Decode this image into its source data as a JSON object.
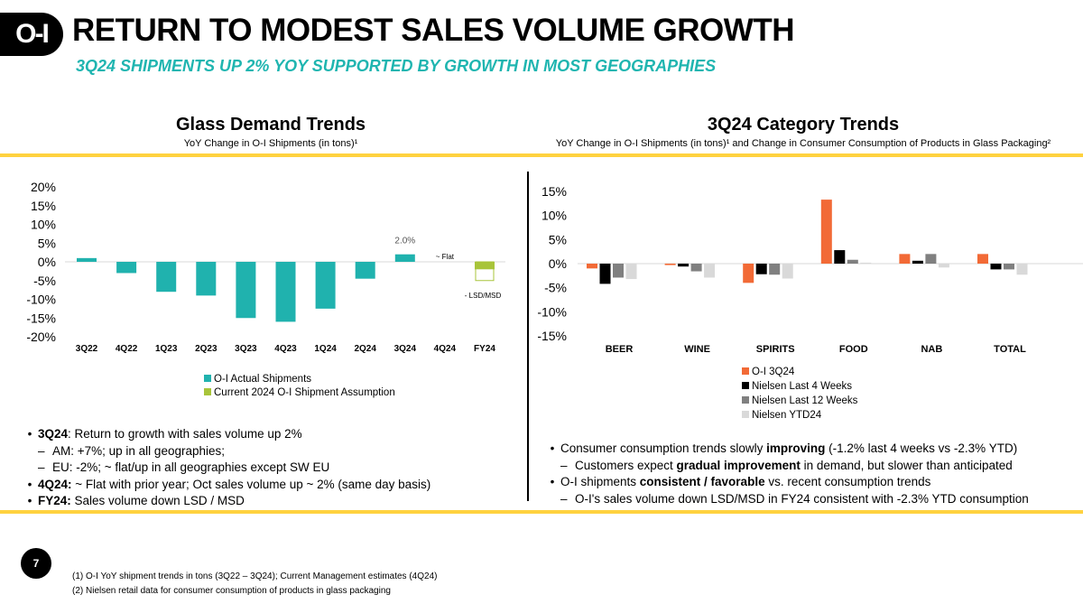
{
  "header": {
    "logo_text": "O-I",
    "title": "RETURN TO MODEST SALES VOLUME GROWTH",
    "subtitle": "3Q24 SHIPMENTS UP 2% YOY SUPPORTED BY GROWTH IN MOST GEOGRAPHIES"
  },
  "colors": {
    "teal": "#20b2ae",
    "lime": "#a8c43a",
    "orange": "#f26a36",
    "black": "#000000",
    "gray": "#808080",
    "lightgray": "#d9d9d9",
    "yellow_rule": "#ffd23f",
    "subtitle": "#1fb5b0"
  },
  "chart_data": [
    {
      "type": "bar",
      "title": "Glass Demand Trends",
      "subtitle": "YoY Change in O-I Shipments (in tons)¹",
      "categories": [
        "3Q22",
        "4Q22",
        "1Q23",
        "2Q23",
        "3Q23",
        "4Q23",
        "1Q24",
        "2Q24",
        "3Q24",
        "4Q24",
        "FY24"
      ],
      "yticks": [
        "20%",
        "15%",
        "10%",
        "5%",
        "0%",
        "-5%",
        "-10%",
        "-15%",
        "-20%"
      ],
      "ylim": [
        -20,
        20
      ],
      "grid": false,
      "series": [
        {
          "name": "O-I Actual Shipments",
          "values": [
            1,
            -3,
            -8,
            -9,
            -15,
            -16,
            -12.5,
            -4.5,
            2.0,
            null,
            null
          ]
        },
        {
          "name": "Current 2024 O-I Shipment Assumption",
          "values": [
            null,
            null,
            null,
            null,
            null,
            null,
            null,
            null,
            null,
            0,
            -2
          ],
          "range_low": -5
        }
      ],
      "annotations": {
        "3Q24": "2.0%",
        "4Q24": "~ Flat",
        "FY24": "- LSD/MSD"
      },
      "legend": "bottom"
    },
    {
      "type": "bar",
      "title": "3Q24 Category Trends",
      "subtitle": "YoY Change in O-I Shipments (in tons)¹ and Change in Consumer Consumption of Products in Glass Packaging²",
      "categories": [
        "BEER",
        "WINE",
        "SPIRITS",
        "FOOD",
        "NAB",
        "TOTAL"
      ],
      "yticks": [
        "15%",
        "10%",
        "5%",
        "0%",
        "-5%",
        "-10%",
        "-15%"
      ],
      "ylim": [
        -15,
        15
      ],
      "grid": false,
      "series": [
        {
          "name": "O-I 3Q24",
          "values": [
            -1.0,
            -0.3,
            -4.0,
            13.3,
            2.0,
            2.0
          ]
        },
        {
          "name": "Nielsen Last 4 Weeks",
          "values": [
            -4.2,
            -0.6,
            -2.2,
            2.8,
            0.6,
            -1.2
          ]
        },
        {
          "name": "Nielsen Last 12 Weeks",
          "values": [
            -2.9,
            -1.6,
            -2.3,
            0.8,
            2.0,
            -1.2
          ]
        },
        {
          "name": "Nielsen YTD24",
          "values": [
            -3.2,
            -2.9,
            -3.1,
            0.2,
            -0.8,
            -2.3
          ]
        }
      ],
      "legend": "bottom"
    }
  ],
  "left_bullets": [
    {
      "level": 1,
      "bold": "3Q24",
      "text": ":  Return to growth with sales volume up 2%"
    },
    {
      "level": 2,
      "bold": "",
      "text": "AM: +7%;  up in all geographies;"
    },
    {
      "level": 2,
      "bold": "",
      "text": "EU: -2%;  ~ flat/up in all geographies except SW EU"
    },
    {
      "level": 1,
      "bold": "4Q24:",
      "text": "  ~ Flat with prior year;  Oct sales volume up ~ 2% (same day basis)"
    },
    {
      "level": 1,
      "bold": "FY24:",
      "text": "  Sales volume down LSD / MSD"
    }
  ],
  "right_bullets": [
    {
      "level": 1,
      "pre": "Consumer consumption trends slowly ",
      "bold": "improving",
      "post": " (-1.2% last 4 weeks vs -2.3% YTD)"
    },
    {
      "level": 2,
      "pre": "Customers expect ",
      "bold": "gradual improvement",
      "post": " in demand, but slower than anticipated"
    },
    {
      "level": 1,
      "pre": "O-I shipments ",
      "bold": "consistent / favorable",
      "post": " vs. recent consumption trends"
    },
    {
      "level": 2,
      "pre": "O-I's sales volume down LSD/MSD in FY24 consistent with -2.3% YTD consumption",
      "bold": "",
      "post": ""
    }
  ],
  "footer": {
    "page_number": "7",
    "notes": [
      "(1) O-I YoY shipment trends in tons (3Q22 – 3Q24);  Current Management estimates (4Q24)",
      "(2) Nielsen retail data for consumer consumption of products in glass packaging"
    ]
  }
}
